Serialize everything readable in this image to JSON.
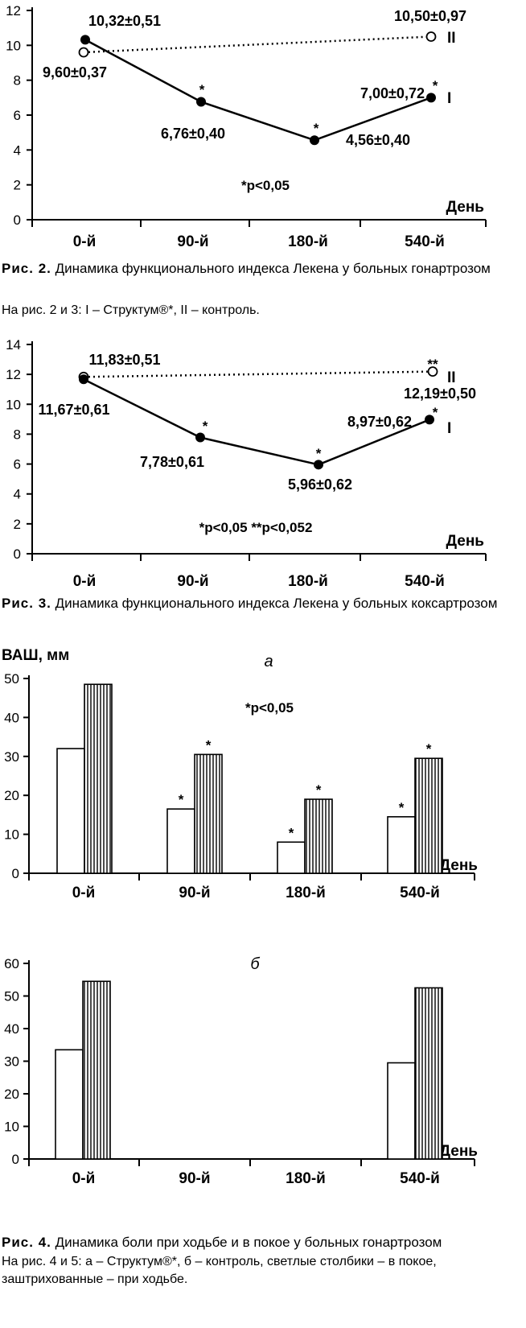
{
  "fig2": {
    "caption_num": "Рис. 2.",
    "caption_text": "Динамика функционального индекса Лекена у больных гонартрозом",
    "note": "На рис. 2 и 3: I – Структум®*, II – контроль."
  },
  "fig3": {
    "caption_num": "Рис. 3.",
    "caption_text": "Динамика функционального индекса Лекена у больных коксартрозом"
  },
  "fig4": {
    "caption_num": "Рис. 4.",
    "caption_text": "Динамика боли при ходьбе и в покое у больных гонартрозом",
    "note": "На рис. 4 и 5: а – Структум®*, б – контроль, светлые столбики – в покое, заштрихованные – при ходьбе."
  },
  "chart_data": [
    {
      "type": "line",
      "categories": [
        "0-й",
        "90-й",
        "180-й",
        "540-й"
      ],
      "xlabel": "День",
      "ylim": [
        0,
        12
      ],
      "yticks": [
        0,
        2,
        4,
        6,
        8,
        10,
        12
      ],
      "series": [
        {
          "name": "I",
          "values": [
            10.32,
            6.76,
            4.56,
            7.0
          ],
          "labels": [
            "10,32±0,51",
            "6,76±0,40",
            "4,56±0,40",
            "7,00±0,72"
          ],
          "stars": [
            "",
            "*",
            "*",
            "*"
          ]
        },
        {
          "name": "II",
          "values": [
            9.6,
            null,
            null,
            10.5
          ],
          "labels": [
            "9,60±0,37",
            "",
            "",
            "10,50±0,97"
          ],
          "stars": [
            "",
            "",
            "",
            ""
          ]
        }
      ],
      "annotation": "*p<0,05"
    },
    {
      "type": "line",
      "categories": [
        "0-й",
        "90-й",
        "180-й",
        "540-й"
      ],
      "xlabel": "День",
      "ylim": [
        0,
        14
      ],
      "yticks": [
        0,
        2,
        4,
        6,
        8,
        10,
        12,
        14
      ],
      "series": [
        {
          "name": "I",
          "values": [
            11.67,
            7.78,
            5.96,
            8.97
          ],
          "labels": [
            "11,67±0,61",
            "7,78±0,61",
            "5,96±0,62",
            "8,97±0,62"
          ],
          "stars": [
            "",
            "*",
            "*",
            "*"
          ]
        },
        {
          "name": "II",
          "values": [
            11.83,
            null,
            null,
            12.19
          ],
          "labels": [
            "11,83±0,51",
            "",
            "",
            "12,19±0,50"
          ],
          "stars": [
            "",
            "",
            "",
            "**"
          ]
        }
      ],
      "annotation": "*p<0,05  **p<0,052"
    },
    {
      "type": "bar",
      "panel": "а",
      "ylabel": "ВАШ, мм",
      "xlabel": "День",
      "categories": [
        "0-й",
        "90-й",
        "180-й",
        "540-й"
      ],
      "ylim": [
        0,
        50
      ],
      "yticks": [
        0,
        10,
        20,
        30,
        40,
        50
      ],
      "series": [
        {
          "values": [
            32,
            16.5,
            8,
            14.5
          ],
          "stars": [
            "",
            "*",
            "*",
            "*"
          ],
          "style": "light"
        },
        {
          "values": [
            48.5,
            30.5,
            19,
            29.5
          ],
          "stars": [
            "",
            "*",
            "*",
            "*"
          ],
          "style": "hatched"
        }
      ],
      "annotation": "*p<0,05"
    },
    {
      "type": "bar",
      "panel": "б",
      "xlabel": "День",
      "categories": [
        "0-й",
        "90-й",
        "180-й",
        "540-й"
      ],
      "ylim": [
        0,
        60
      ],
      "yticks": [
        0,
        10,
        20,
        30,
        40,
        50,
        60
      ],
      "series": [
        {
          "values": [
            33.5,
            null,
            null,
            29.5
          ],
          "stars": [
            "",
            "",
            "",
            ""
          ],
          "style": "light"
        },
        {
          "values": [
            54.5,
            null,
            null,
            52.5
          ],
          "stars": [
            "",
            "",
            "",
            ""
          ],
          "style": "hatched"
        }
      ]
    }
  ]
}
